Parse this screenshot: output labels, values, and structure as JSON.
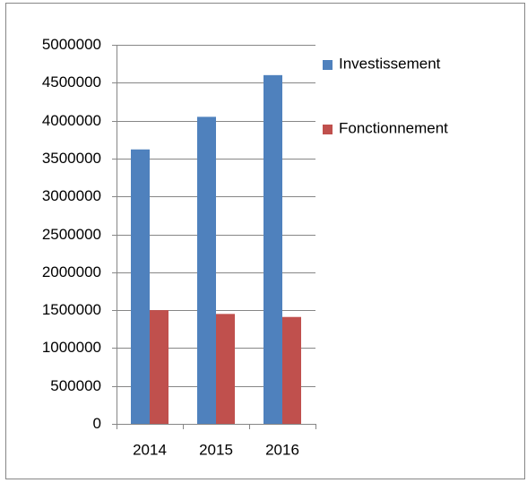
{
  "chart_data": {
    "type": "bar",
    "categories": [
      "2014",
      "2015",
      "2016"
    ],
    "series": [
      {
        "name": "Investissement",
        "color": "#4f81bd",
        "values": [
          3620000,
          4050000,
          4600000
        ]
      },
      {
        "name": "Fonctionnement",
        "color": "#c0504d",
        "values": [
          1500000,
          1450000,
          1410000
        ]
      }
    ],
    "ylim": [
      0,
      5000000
    ],
    "yticks": [
      0,
      500000,
      1000000,
      1500000,
      2000000,
      2500000,
      3000000,
      3500000,
      4000000,
      4500000,
      5000000
    ],
    "grid": true,
    "legend": "right"
  }
}
